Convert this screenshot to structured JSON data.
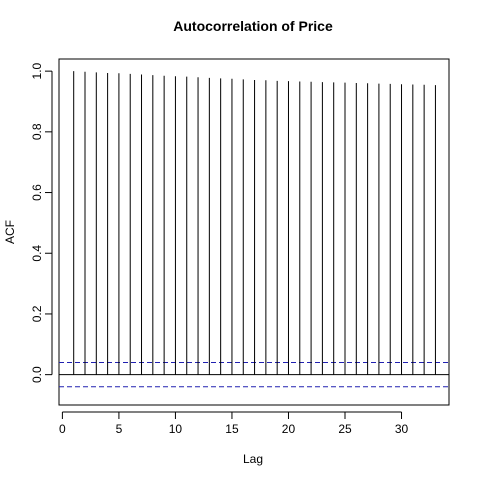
{
  "chart_data": {
    "type": "bar",
    "title": "Autocorrelation of Price",
    "xlabel": "Lag",
    "ylabel": "ACF",
    "xlim": [
      -0.3,
      34.2
    ],
    "ylim": [
      -0.1,
      1.04
    ],
    "x_ticks": [
      0,
      5,
      10,
      15,
      20,
      25,
      30
    ],
    "y_ticks": [
      0.0,
      0.2,
      0.4,
      0.6,
      0.8,
      1.0
    ],
    "y_tick_labels": [
      "0.0",
      "0.2",
      "0.4",
      "0.6",
      "0.8",
      "1.0"
    ],
    "lags": [
      1,
      2,
      3,
      4,
      5,
      6,
      7,
      8,
      9,
      10,
      11,
      12,
      13,
      14,
      15,
      16,
      17,
      18,
      19,
      20,
      21,
      22,
      23,
      24,
      25,
      26,
      27,
      28,
      29,
      30,
      31,
      32,
      33
    ],
    "acf": [
      1.0,
      0.998,
      0.996,
      0.994,
      0.993,
      0.991,
      0.989,
      0.987,
      0.985,
      0.983,
      0.982,
      0.98,
      0.978,
      0.976,
      0.975,
      0.973,
      0.971,
      0.97,
      0.968,
      0.967,
      0.966,
      0.965,
      0.964,
      0.963,
      0.962,
      0.961,
      0.96,
      0.959,
      0.958,
      0.957,
      0.956,
      0.955,
      0.954
    ],
    "confidence_bounds": [
      0.04,
      -0.04
    ],
    "zero_line": true,
    "grid": false,
    "colors": {
      "bars": "#000000",
      "confidence": "#2020b0"
    }
  }
}
